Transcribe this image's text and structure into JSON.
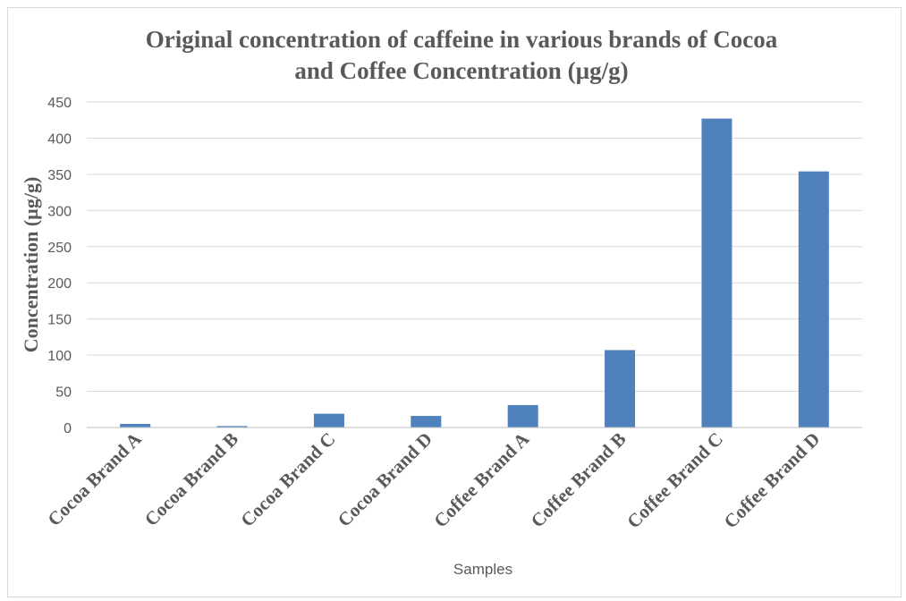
{
  "chart_data": {
    "type": "bar",
    "title_line1": "Original concentration of caffeine in various brands of Cocoa",
    "title_line2": "and Coffee  Concentration (µg/g)",
    "xlabel": "Samples",
    "ylabel": "Concentration (µg/g)",
    "categories": [
      "Cocoa Brand A",
      "Cocoa Brand B",
      "Cocoa Brand C",
      "Cocoa Brand D",
      "Coffee Brand A",
      "Coffee Brand B",
      "Coffee Brand C",
      "Coffee Brand D"
    ],
    "values": [
      5,
      2,
      19,
      16,
      31,
      107,
      427,
      354
    ],
    "ylim": [
      0,
      450
    ],
    "yticks": [
      0,
      50,
      100,
      150,
      200,
      250,
      300,
      350,
      400,
      450
    ],
    "grid": true,
    "legend": "none",
    "bar_color": "#4f81bd",
    "grid_color": "#d9d9d9"
  }
}
